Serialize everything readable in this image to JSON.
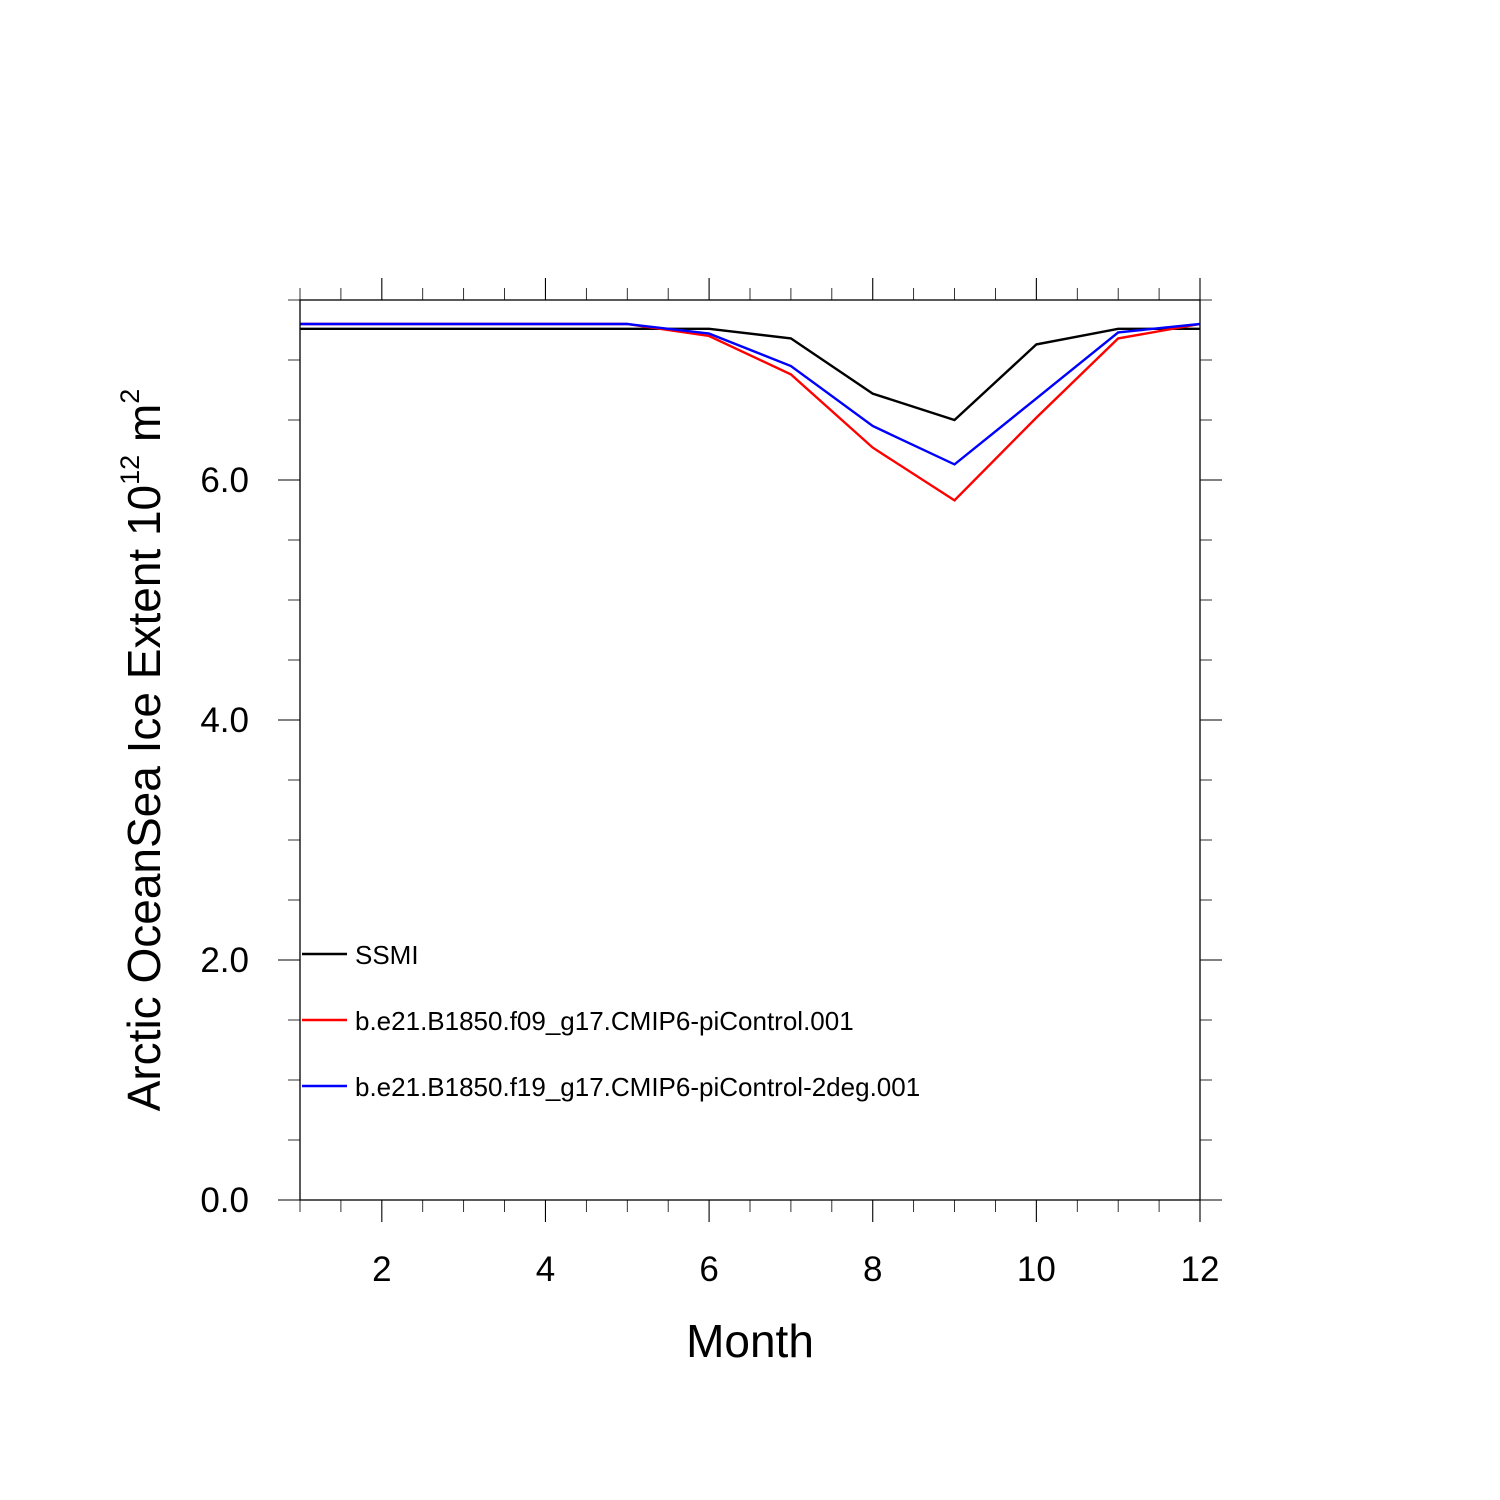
{
  "chart_data": {
    "type": "line",
    "title": "",
    "xlabel": "Month",
    "ylabel": "Arctic OceanSea Ice Extent 10",
    "ylabel_exponent": "12",
    "ylabel_unit": " m",
    "ylabel_unit_exponent": "2",
    "xlim": [
      1,
      12
    ],
    "ylim": [
      0,
      7.5
    ],
    "x_ticks": [
      2,
      4,
      6,
      8,
      10,
      12
    ],
    "x_tick_labels": [
      "2",
      "4",
      "6",
      "8",
      "10",
      "12"
    ],
    "y_ticks": [
      0,
      2,
      4,
      6
    ],
    "y_tick_labels": [
      "0.0",
      "2.0",
      "4.0",
      "6.0"
    ],
    "x_minor_step": 0.5,
    "y_minor_step": 0.5,
    "grid": false,
    "legend_position": "bottom-left",
    "x": [
      1,
      2,
      3,
      4,
      5,
      6,
      7,
      8,
      9,
      10,
      11,
      12
    ],
    "series": [
      {
        "name": "SSMI",
        "color": "#000000",
        "values": [
          7.26,
          7.26,
          7.26,
          7.26,
          7.26,
          7.26,
          7.18,
          6.72,
          6.5,
          7.13,
          7.26,
          7.26
        ]
      },
      {
        "name": "b.e21.B1850.f09_g17.CMIP6-piControl.001",
        "color": "#ff0000",
        "values": [
          7.3,
          7.3,
          7.3,
          7.3,
          7.3,
          7.2,
          6.88,
          6.27,
          5.83,
          6.52,
          7.18,
          7.3
        ]
      },
      {
        "name": "b.e21.B1850.f19_g17.CMIP6-piControl-2deg.001",
        "color": "#0000ff",
        "values": [
          7.3,
          7.3,
          7.3,
          7.3,
          7.3,
          7.22,
          6.95,
          6.45,
          6.13,
          6.68,
          7.23,
          7.3
        ]
      }
    ]
  }
}
